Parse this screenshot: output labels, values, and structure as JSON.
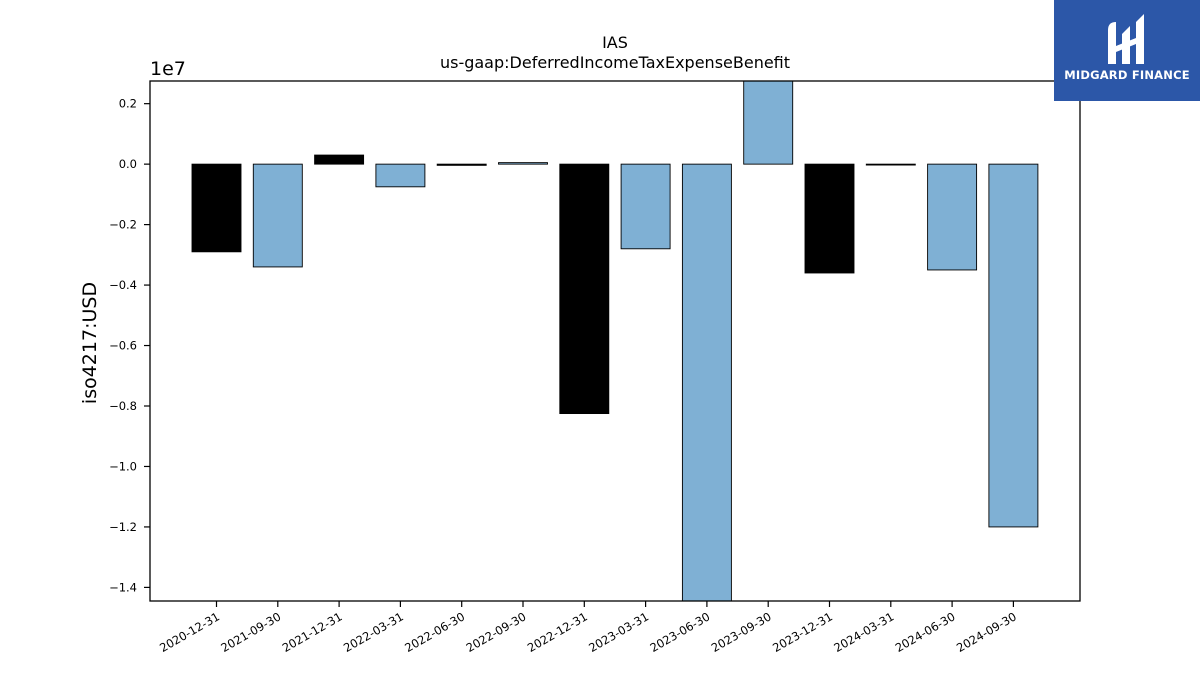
{
  "chart_data": {
    "type": "bar",
    "title": "IAS",
    "subtitle": "us-gaap:DeferredIncomeTaxExpenseBenefit",
    "ylabel": "iso4217:USD",
    "xlabel": "",
    "offset_label": "1e7",
    "ylim": [
      -1.445,
      0.275
    ],
    "yticks": [
      0.2,
      0.0,
      -0.2,
      -0.4,
      -0.6,
      -0.8,
      -1.0,
      -1.2,
      -1.4
    ],
    "ytick_labels": [
      "0.2",
      "0.0",
      "−0.2",
      "−0.4",
      "−0.6",
      "−0.8",
      "−1.0",
      "−1.2",
      "−1.4"
    ],
    "categories": [
      "2020-12-31",
      "2021-09-30",
      "2021-12-31",
      "2022-03-31",
      "2022-06-30",
      "2022-09-30",
      "2022-12-31",
      "2023-03-31",
      "2023-06-30",
      "2023-09-30",
      "2023-12-31",
      "2024-03-31",
      "2024-06-30",
      "2024-09-30"
    ],
    "values": [
      -0.29,
      -0.34,
      0.03,
      -0.075,
      -0.004,
      0.005,
      -0.825,
      -0.28,
      -1.5,
      0.28,
      -0.36,
      -0.003,
      -0.35,
      -1.2
    ],
    "bar_colors": [
      "#000000",
      "#7fb0d4",
      "#000000",
      "#7fb0d4",
      "#000000",
      "#7fb0d4",
      "#000000",
      "#7fb0d4",
      "#7fb0d4",
      "#7fb0d4",
      "#000000",
      "#000000",
      "#7fb0d4",
      "#7fb0d4"
    ],
    "grid": false
  },
  "brand": {
    "name": "MIDGARD FINANCE",
    "color": "#2c57a8",
    "logo_icon": "midgard-logo-icon"
  }
}
